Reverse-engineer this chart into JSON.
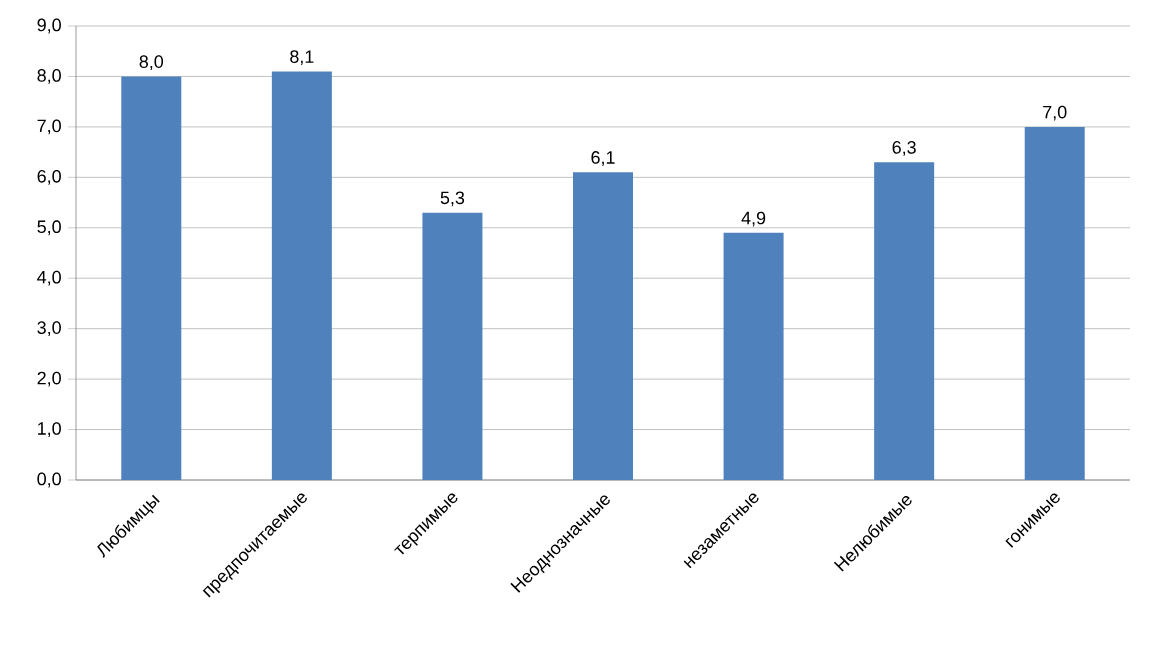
{
  "chart_data": {
    "type": "bar",
    "categories": [
      "Любимцы",
      "предпочитаемые",
      "терпимые",
      "Неоднозначные",
      "незаметные",
      "Нелюбимые",
      "гонимые"
    ],
    "values": [
      8.0,
      8.1,
      5.3,
      6.1,
      4.9,
      6.3,
      7.0
    ],
    "value_labels": [
      "8,0",
      "8,1",
      "5,3",
      "6,1",
      "4,9",
      "6,3",
      "7,0"
    ],
    "color": "#4f81bd",
    "ylim": [
      0,
      9
    ],
    "yticks": [
      {
        "value": 0,
        "label": "0,0"
      },
      {
        "value": 1,
        "label": "1,0"
      },
      {
        "value": 2,
        "label": "2,0"
      },
      {
        "value": 3,
        "label": "3,0"
      },
      {
        "value": 4,
        "label": "4,0"
      },
      {
        "value": 5,
        "label": "5,0"
      },
      {
        "value": 6,
        "label": "6,0"
      },
      {
        "value": 7,
        "label": "7,0"
      },
      {
        "value": 8,
        "label": "8,0"
      },
      {
        "value": 9,
        "label": "9,0"
      }
    ],
    "grid": "y"
  }
}
